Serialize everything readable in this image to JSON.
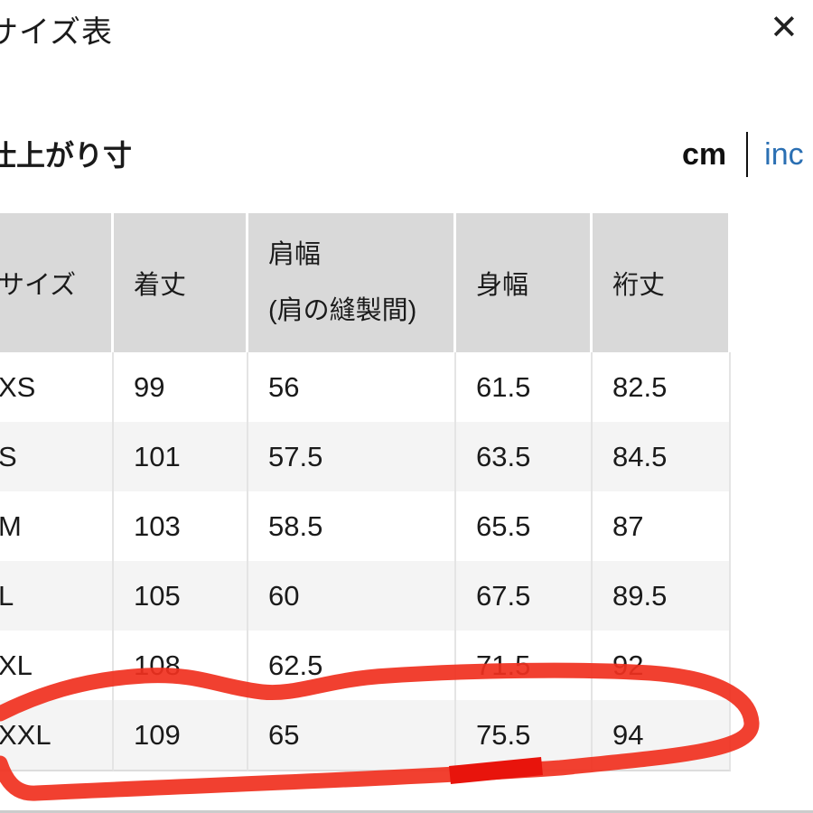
{
  "dialog": {
    "title": "サイズ表",
    "close_icon": "close-icon"
  },
  "section": {
    "title": "仕上がり寸",
    "units": [
      "cm",
      "inch"
    ],
    "selected_unit": "cm",
    "inch_label_visible": "inc"
  },
  "table": {
    "headers": [
      "サイズ",
      "着丈",
      "肩幅",
      "身幅",
      "裄丈"
    ],
    "header_sub": {
      "2": "(肩の縫製間)"
    },
    "rows": [
      [
        "XS",
        "99",
        "56",
        "61.5",
        "82.5"
      ],
      [
        "S",
        "101",
        "57.5",
        "63.5",
        "84.5"
      ],
      [
        "M",
        "103",
        "58.5",
        "65.5",
        "87"
      ],
      [
        "L",
        "105",
        "60",
        "67.5",
        "89.5"
      ],
      [
        "XL",
        "108",
        "62.5",
        "71.5",
        "92"
      ],
      [
        "XXL",
        "109",
        "65",
        "75.5",
        "94"
      ]
    ],
    "highlighted_row": "XXL"
  },
  "colors": {
    "header_bg": "#d9d9d9",
    "stripe_bg": "#f4f4f4",
    "link": "#2a6fb3",
    "annotation": "#f0301e"
  }
}
